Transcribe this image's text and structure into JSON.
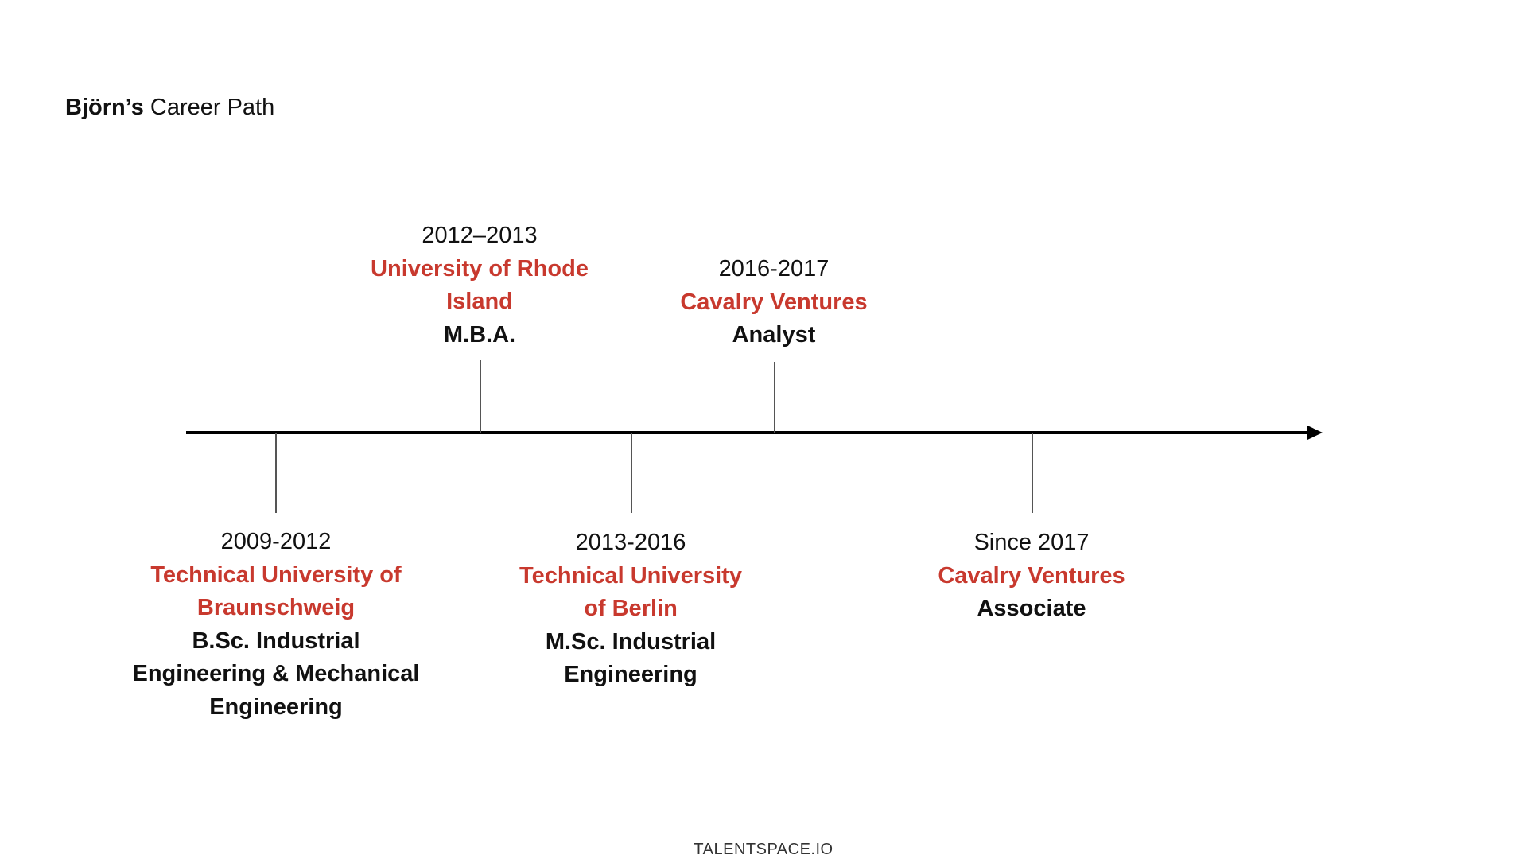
{
  "title": {
    "name": "Björn’s",
    "rest": "Career Path"
  },
  "events": [
    {
      "years": "2012–2013",
      "org_lines": [
        "University of Rhode",
        "Island"
      ],
      "role_lines": [
        "M.B.A."
      ],
      "side": "above"
    },
    {
      "years": "2016-2017",
      "org_lines": [
        "Cavalry Ventures"
      ],
      "role_lines": [
        "Analyst"
      ],
      "side": "above"
    },
    {
      "years": "2009-2012",
      "org_lines": [
        "Technical University of",
        "Braunschweig"
      ],
      "role_lines": [
        "B.Sc. Industrial",
        "Engineering & Mechanical",
        "Engineering"
      ],
      "side": "below"
    },
    {
      "years": "2013-2016",
      "org_lines": [
        "Technical University",
        "of Berlin"
      ],
      "role_lines": [
        "M.Sc. Industrial",
        "Engineering"
      ],
      "side": "below"
    },
    {
      "years": "Since 2017",
      "org_lines": [
        "Cavalry Ventures"
      ],
      "role_lines": [
        "Associate"
      ],
      "side": "below"
    }
  ],
  "footer": "TALENTSPACE.IO",
  "colors": {
    "accent": "#c8392e",
    "text": "#111111",
    "axis": "#000000"
  }
}
